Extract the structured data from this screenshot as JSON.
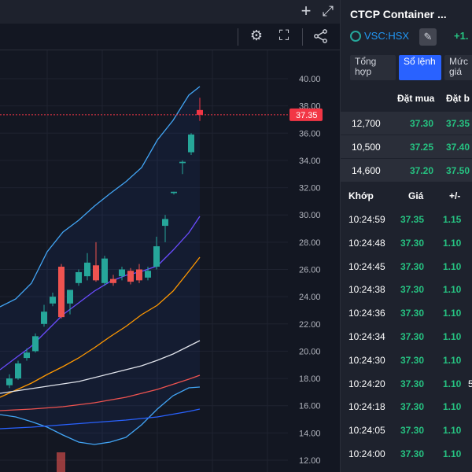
{
  "toolbar": {
    "plus_icon": "+",
    "expand_icon": "⤢",
    "settings_icon": "⚙",
    "fullscreen_icon": "⛶",
    "share_icon": "⋖"
  },
  "panel": {
    "title": "CTCP Container ...",
    "ticker": "VSC:HSX",
    "edit_icon": "✎",
    "change": "+1.",
    "tabs": [
      "Tổng hợp",
      "Sổ lệnh",
      "Mức giá"
    ],
    "active_tab": 1
  },
  "order_book": {
    "headers": {
      "bid": "Đặt mua",
      "ask": "Đặt b"
    },
    "rows": [
      {
        "volume": "12,700",
        "bid": "37.30",
        "ask": "37.35"
      },
      {
        "volume": "10,500",
        "bid": "37.25",
        "ask": "37.40"
      },
      {
        "volume": "14,600",
        "bid": "37.20",
        "ask": "37.50"
      }
    ]
  },
  "trades": {
    "headers": {
      "time": "Khớp",
      "price": "Giá",
      "change": "+/-"
    },
    "rows": [
      {
        "time": "10:24:59",
        "price": "37.35",
        "change": "1.15",
        "vol": ""
      },
      {
        "time": "10:24:48",
        "price": "37.30",
        "change": "1.10",
        "vol": ""
      },
      {
        "time": "10:24:45",
        "price": "37.30",
        "change": "1.10",
        "vol": ""
      },
      {
        "time": "10:24:38",
        "price": "37.30",
        "change": "1.10",
        "vol": ""
      },
      {
        "time": "10:24:36",
        "price": "37.30",
        "change": "1.10",
        "vol": ""
      },
      {
        "time": "10:24:34",
        "price": "37.30",
        "change": "1.10",
        "vol": ""
      },
      {
        "time": "10:24:30",
        "price": "37.30",
        "change": "1.10",
        "vol": ""
      },
      {
        "time": "10:24:20",
        "price": "37.30",
        "change": "1.10",
        "vol": "5"
      },
      {
        "time": "10:24:18",
        "price": "37.30",
        "change": "1.10",
        "vol": ""
      },
      {
        "time": "10:24:05",
        "price": "37.30",
        "change": "1.10",
        "vol": ""
      },
      {
        "time": "10:24:00",
        "price": "37.30",
        "change": "1.10",
        "vol": ""
      }
    ]
  },
  "chart_data": {
    "type": "candlestick",
    "y_ticks": [
      "40.00",
      "38.00",
      "36.00",
      "34.00",
      "32.00",
      "30.00",
      "28.00",
      "26.00",
      "24.00",
      "22.00",
      "20.00",
      "18.00",
      "16.00",
      "14.00",
      "12.00"
    ],
    "ylim": [
      11.2,
      41.2
    ],
    "last_price": 37.35,
    "last_price_label": "37.35",
    "colors": {
      "up": "#26a69a",
      "down": "#ef5350",
      "last": "#f23645"
    },
    "candles": [
      {
        "o": 17.5,
        "h": 18.3,
        "l": 17.3,
        "c": 18.0
      },
      {
        "o": 18.0,
        "h": 19.3,
        "l": 17.9,
        "c": 19.1
      },
      {
        "o": 19.5,
        "h": 20.2,
        "l": 19.3,
        "c": 19.9
      },
      {
        "o": 20.0,
        "h": 21.3,
        "l": 19.9,
        "c": 21.1
      },
      {
        "o": 22.0,
        "h": 23.4,
        "l": 21.8,
        "c": 22.9
      },
      {
        "o": 23.5,
        "h": 24.3,
        "l": 23.3,
        "c": 24.0
      },
      {
        "o": 26.2,
        "h": 26.4,
        "l": 22.4,
        "c": 22.5
      },
      {
        "o": 23.5,
        "h": 24.4,
        "l": 22.7,
        "c": 24.5
      },
      {
        "o": 25.0,
        "h": 26.0,
        "l": 24.8,
        "c": 25.8
      },
      {
        "o": 25.5,
        "h": 27.2,
        "l": 25.2,
        "c": 26.5
      },
      {
        "o": 26.3,
        "h": 28.0,
        "l": 25.1,
        "c": 25.2
      },
      {
        "o": 25.0,
        "h": 27.0,
        "l": 24.8,
        "c": 26.8
      },
      {
        "o": 25.3,
        "h": 25.6,
        "l": 24.8,
        "c": 25.0
      },
      {
        "o": 25.5,
        "h": 26.2,
        "l": 25.2,
        "c": 26.0
      },
      {
        "o": 25.9,
        "h": 26.1,
        "l": 24.9,
        "c": 25.1
      },
      {
        "o": 26.0,
        "h": 26.4,
        "l": 25.0,
        "c": 25.2
      },
      {
        "o": 25.4,
        "h": 26.2,
        "l": 25.2,
        "c": 25.9
      },
      {
        "o": 26.2,
        "h": 28.4,
        "l": 26.0,
        "c": 27.7
      },
      {
        "o": 29.2,
        "h": 30.0,
        "l": 28.0,
        "c": 29.7
      },
      {
        "o": 31.6,
        "h": 31.7,
        "l": 31.5,
        "c": 31.7
      },
      {
        "o": 33.8,
        "h": 34.0,
        "l": 33.0,
        "c": 33.9
      },
      {
        "o": 34.6,
        "h": 36.0,
        "l": 34.4,
        "c": 35.9
      },
      {
        "o": 37.7,
        "h": 38.6,
        "l": 36.9,
        "c": 37.35
      }
    ],
    "candle_x_start": 8,
    "candle_x_step": 11
  }
}
